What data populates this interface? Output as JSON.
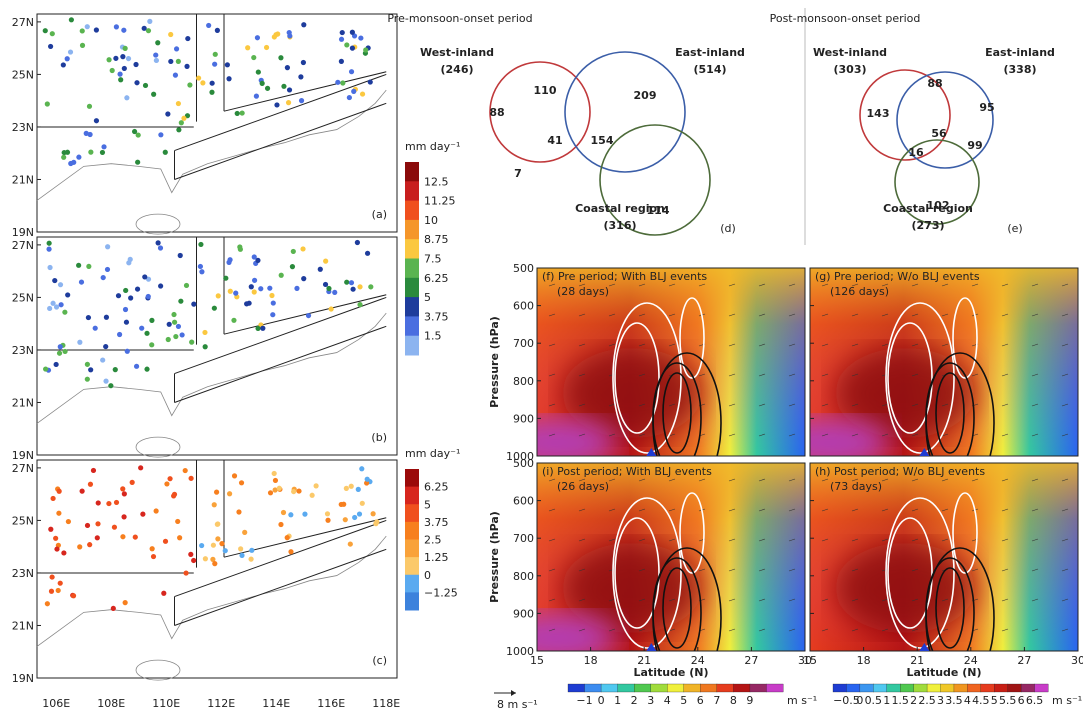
{
  "maps": {
    "lat_labels": [
      "27N",
      "25N",
      "23N",
      "21N",
      "19N"
    ],
    "lon_labels": [
      "106E",
      "108E",
      "110E",
      "112E",
      "114E",
      "116E",
      "118E"
    ],
    "panels": [
      {
        "label": "(a)"
      },
      {
        "label": "(b)"
      },
      {
        "label": "(c)"
      }
    ],
    "colorbars": [
      {
        "unit": "mm day⁻¹",
        "labels": [
          "12.5",
          "11.25",
          "10",
          "8.75",
          "7.5",
          "6.25",
          "5",
          "3.75",
          "1.5"
        ],
        "colors": [
          "#8b0a0a",
          "#c81e1e",
          "#f0501e",
          "#f5962a",
          "#fbc840",
          "#5ab450",
          "#2a8a3c",
          "#1e3c9c",
          "#4a6ee0",
          "#8cb4f0"
        ]
      },
      {
        "unit": "mm day⁻¹",
        "labels": [
          "6.25",
          "5",
          "3.75",
          "2.5",
          "1.25",
          "0",
          "−1.25"
        ],
        "colors": [
          "#9b0a0a",
          "#d7261e",
          "#f0501e",
          "#f77f1e",
          "#f9a23a",
          "#fbc96a",
          "#5aaaf0",
          "#3c82dc"
        ]
      }
    ]
  },
  "venns": [
    {
      "title": "Pre-monsoon-onset period",
      "label": "(d)",
      "west": "West-inland",
      "west_n": "(246)",
      "east": "East-inland",
      "east_n": "(514)",
      "coast": "Coastal region",
      "coast_n": "(316)",
      "regions": [
        "88",
        "110",
        "209",
        "41",
        "7",
        "154",
        "114"
      ]
    },
    {
      "title": "Post-monsoon-onset period",
      "label": "(e)",
      "west": "West-inland",
      "west_n": "(303)",
      "east": "East-inland",
      "east_n": "(338)",
      "coast": "Coastal region",
      "coast_n": "(273)",
      "regions": [
        "143",
        "88",
        "95",
        "56",
        "16",
        "99",
        "102"
      ]
    }
  ],
  "sections": {
    "ylabel": "Pressure (hPa)",
    "xlabel": "Latitude (N)",
    "ylim": [
      500,
      1000
    ],
    "yticks": [
      500,
      600,
      700,
      800,
      900,
      1000
    ],
    "xlim": [
      15,
      30
    ],
    "xticks": [
      15,
      18,
      21,
      24,
      27,
      30
    ],
    "panels": [
      {
        "title": "(f) Pre period; With BLJ events",
        "days": "(28 days)"
      },
      {
        "title": "(g) Pre period; W/o BLJ events",
        "days": "(126 days)"
      },
      {
        "title": "(i) Post period; With BLJ events",
        "days": "(26 days)"
      },
      {
        "title": "(h) Post period; W/o BLJ events",
        "days": "(73 days)"
      }
    ],
    "vector_label": "8 m s⁻¹",
    "colorbars": [
      {
        "labels": [
          "−1",
          "0",
          "1",
          "2",
          "3",
          "4",
          "5",
          "6",
          "7",
          "8",
          "9"
        ],
        "unit": "m s⁻¹",
        "colors": [
          "#1e3cd2",
          "#3c8cf0",
          "#50c8f0",
          "#32c8a0",
          "#50c850",
          "#a0dc3c",
          "#f0f03c",
          "#f0b428",
          "#f07820",
          "#e63c1e",
          "#b41414",
          "#962864",
          "#c83cc8"
        ]
      },
      {
        "labels": [
          "−0.5",
          "0",
          "0.5",
          "1",
          "1.5",
          "2",
          "2.5",
          "3",
          "3.5",
          "4",
          "4.5",
          "5",
          "5.5",
          "6",
          "6.5"
        ],
        "unit": "m s⁻¹",
        "colors": [
          "#1e3cd2",
          "#2864f0",
          "#3c96f0",
          "#50c8f0",
          "#32c8a0",
          "#50c850",
          "#a0dc3c",
          "#f0f03c",
          "#f0c828",
          "#f09620",
          "#f06420",
          "#e63c1e",
          "#c81e14",
          "#a01414",
          "#962864",
          "#c83cc8"
        ]
      }
    ]
  }
}
